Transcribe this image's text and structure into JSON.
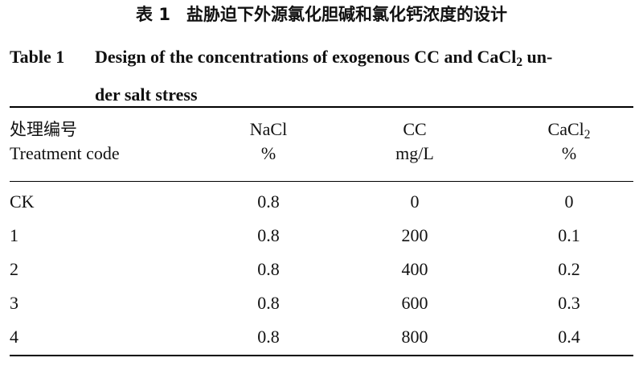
{
  "caption": {
    "cn_number": "表 1",
    "cn_title": "盐胁迫下外源氯化胆碱和氯化钙浓度的设计",
    "en_number": "Table 1",
    "en_title_part1": "Design of the concentrations of exogenous CC and CaCl",
    "en_title_sub": "2",
    "en_title_part2": " un-",
    "en_title_cont": "der salt stress"
  },
  "table": {
    "headers": {
      "treatment_cn": "处理编号",
      "treatment_en": "Treatment code",
      "nacl_name": "NaCl",
      "nacl_unit": "%",
      "cc_name": "CC",
      "cc_unit": "mg/L",
      "cacl2_name": "CaCl",
      "cacl2_sub": "2",
      "cacl2_unit": "%"
    },
    "rows": [
      {
        "code": "CK",
        "nacl": "0.8",
        "cc": "0",
        "cacl2": "0"
      },
      {
        "code": "1",
        "nacl": "0.8",
        "cc": "200",
        "cacl2": "0.1"
      },
      {
        "code": "2",
        "nacl": "0.8",
        "cc": "400",
        "cacl2": "0.2"
      },
      {
        "code": "3",
        "nacl": "0.8",
        "cc": "600",
        "cacl2": "0.3"
      },
      {
        "code": "4",
        "nacl": "0.8",
        "cc": "800",
        "cacl2": "0.4"
      }
    ]
  }
}
